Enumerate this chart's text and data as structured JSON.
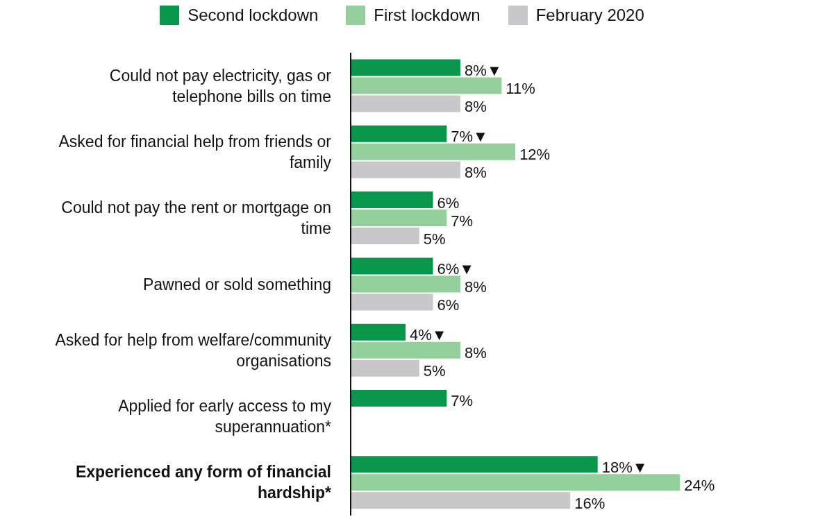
{
  "chart_data": {
    "type": "bar",
    "orientation": "horizontal",
    "legend": "top",
    "categories": [
      "Could not pay electricity, gas or telephone bills on time",
      "Asked for financial help from friends or family",
      "Could not pay the rent or mortgage on time",
      "Pawned or sold something",
      "Asked for help from welfare/community organisations",
      "Applied for early access to my superannuation*",
      "Experienced any form of financial hardship*"
    ],
    "series": [
      {
        "name": "Second lockdown",
        "color": "#07964a",
        "values": [
          8,
          7,
          6,
          6,
          4,
          7,
          18
        ],
        "value_labels": [
          "8%▼",
          "7%▼",
          "6%",
          "6%▼",
          "4%▼",
          "7%",
          "18%▼"
        ]
      },
      {
        "name": "First lockdown",
        "color": "#95cf9d",
        "values": [
          11,
          12,
          7,
          8,
          8,
          null,
          24
        ],
        "value_labels": [
          "11%",
          "12%",
          "7%",
          "8%",
          "8%",
          null,
          "24%"
        ]
      },
      {
        "name": "February 2020",
        "color": "#c8c8ca",
        "values": [
          8,
          8,
          5,
          6,
          5,
          null,
          16
        ],
        "value_labels": [
          "8%",
          "8%",
          "5%",
          "6%",
          "5%",
          null,
          "16%"
        ]
      }
    ]
  }
}
